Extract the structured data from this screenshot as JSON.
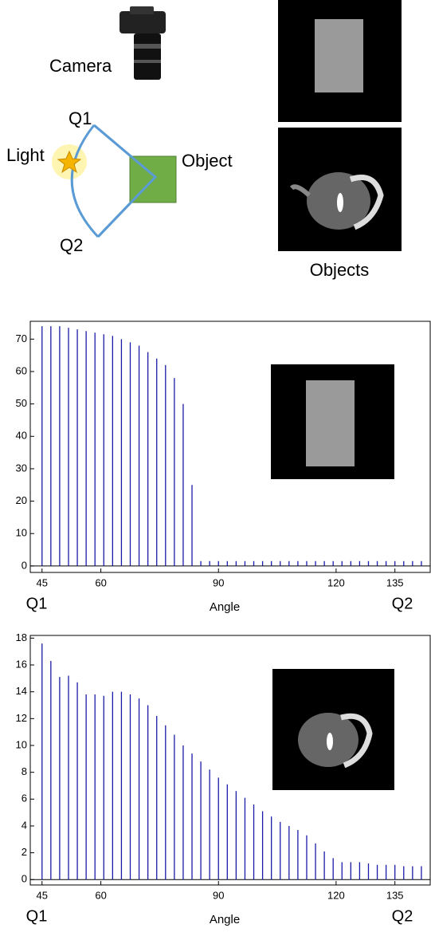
{
  "diagram": {
    "camera": "Camera",
    "q1": "Q1",
    "light": "Light",
    "object": "Object",
    "q2": "Q2",
    "objects": "Objects"
  },
  "chart_data": [
    {
      "type": "stem",
      "color": "#1a1aa8",
      "x": [
        45,
        47.25,
        49.5,
        51.75,
        54,
        56.25,
        58.5,
        60.75,
        63,
        65.25,
        67.5,
        69.75,
        72,
        74.25,
        76.5,
        78.75,
        81,
        83.25,
        85.5,
        87.75,
        90,
        92.25,
        94.5,
        96.75,
        99,
        101.25,
        103.5,
        105.75,
        108,
        110.25,
        112.5,
        114.75,
        117,
        119.25,
        121.5,
        123.75,
        126,
        128.25,
        130.5,
        132.75,
        135,
        137.25,
        139.5,
        141.75
      ],
      "values": [
        74,
        74,
        74,
        73.5,
        73,
        72.5,
        72,
        71.5,
        71,
        70,
        69,
        68,
        66,
        64,
        62,
        58,
        50,
        25,
        1.5,
        1.5,
        1.5,
        1.5,
        1.5,
        1.5,
        1.5,
        1.5,
        1.5,
        1.5,
        1.5,
        1.5,
        1.5,
        1.5,
        1.5,
        1.5,
        1.5,
        1.5,
        1.5,
        1.5,
        1.5,
        1.5,
        1.5,
        1.5,
        1.5,
        1.5
      ],
      "xlim": [
        42,
        144
      ],
      "ylim": [
        -2,
        75.5
      ],
      "xticks": [
        45,
        60,
        90,
        120,
        135
      ],
      "yticks": [
        0,
        10,
        20,
        30,
        40,
        50,
        60,
        70
      ],
      "x_label": "Angle",
      "start_label": "Q1",
      "end_label": "Q2"
    },
    {
      "type": "stem",
      "color": "#1a1aa8",
      "x": [
        45,
        47.25,
        49.5,
        51.75,
        54,
        56.25,
        58.5,
        60.75,
        63,
        65.25,
        67.5,
        69.75,
        72,
        74.25,
        76.5,
        78.75,
        81,
        83.25,
        85.5,
        87.75,
        90,
        92.25,
        94.5,
        96.75,
        99,
        101.25,
        103.5,
        105.75,
        108,
        110.25,
        112.5,
        114.75,
        117,
        119.25,
        121.5,
        123.75,
        126,
        128.25,
        130.5,
        132.75,
        135,
        137.25,
        139.5,
        141.75
      ],
      "values": [
        17.6,
        16.3,
        15.1,
        15.2,
        14.7,
        13.8,
        13.8,
        13.7,
        14,
        14,
        13.8,
        13.5,
        13,
        12.2,
        11.5,
        10.8,
        10,
        9.4,
        8.8,
        8.2,
        7.6,
        7.1,
        6.6,
        6.1,
        5.6,
        5.1,
        4.7,
        4.3,
        4,
        3.7,
        3.3,
        2.7,
        2.1,
        1.6,
        1.3,
        1.3,
        1.3,
        1.2,
        1.1,
        1.1,
        1.1,
        1,
        1,
        1
      ],
      "xlim": [
        42,
        144
      ],
      "ylim": [
        -0.4,
        18.2
      ],
      "xticks": [
        45,
        60,
        90,
        120,
        135
      ],
      "yticks": [
        0,
        2,
        4,
        6,
        8,
        10,
        12,
        14,
        16,
        18
      ],
      "x_label": "Angle",
      "start_label": "Q1",
      "end_label": "Q2"
    }
  ]
}
